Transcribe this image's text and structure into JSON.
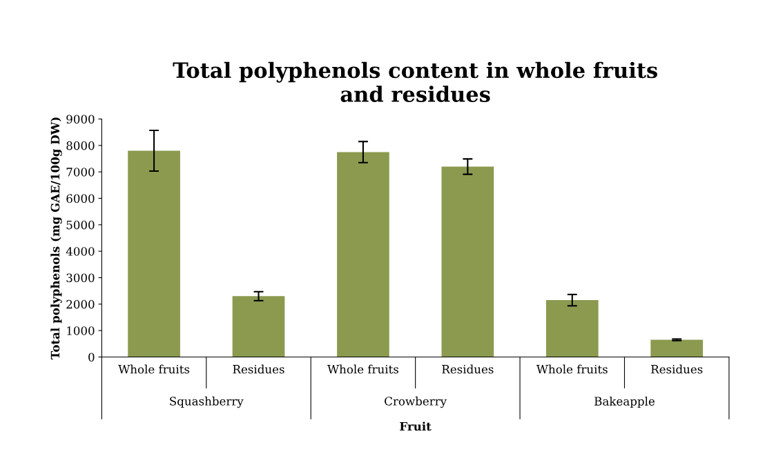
{
  "chart_data": {
    "type": "bar",
    "title": "Total polyphenols content in whole fruits\nand residues",
    "xlabel": "Fruit",
    "ylabel": "Total polyphenols (mg GAE/100g DW)",
    "categories": [
      "Whole fruits",
      "Residues",
      "Whole fruits",
      "Residues",
      "Whole fruits",
      "Residues"
    ],
    "values": [
      7800,
      2300,
      7750,
      7200,
      2150,
      650
    ],
    "errors": [
      770,
      170,
      400,
      290,
      215,
      30
    ],
    "color": "#8b9a4f",
    "ylim": [
      0,
      9000
    ],
    "yticks": [
      0,
      1000,
      2000,
      3000,
      4000,
      5000,
      6000,
      7000,
      8000,
      9000
    ],
    "annotations": [
      "Squashberry",
      "Crowberry",
      "Bakeapple"
    ],
    "grid": false,
    "legend": false
  }
}
